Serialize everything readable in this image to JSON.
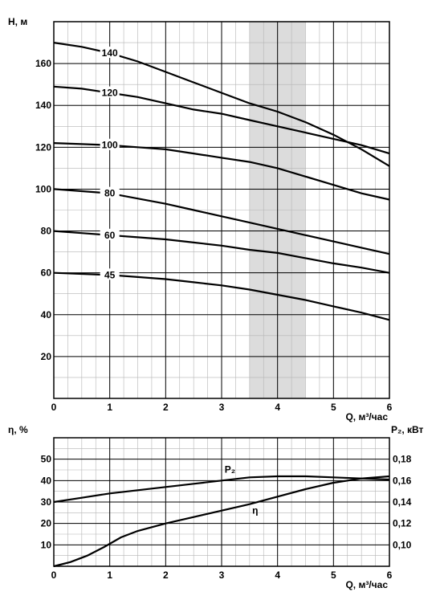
{
  "chart_data": [
    {
      "type": "line",
      "title": "",
      "ylabel": "H, м",
      "xlabel": "Q, м³/час",
      "xlim": [
        0,
        6
      ],
      "ylim": [
        0,
        180
      ],
      "x_ticks": [
        "0",
        "1",
        "2",
        "3",
        "4",
        "5",
        "6"
      ],
      "y_ticks": [
        "20",
        "40",
        "60",
        "80",
        "100",
        "120",
        "140",
        "160"
      ],
      "grid": true,
      "highlight_range": [
        3.5,
        4.5
      ],
      "highlight_color": "#dcdcdc",
      "series": [
        {
          "name": "140",
          "x": [
            0,
            0.5,
            1.0,
            1.5,
            2.0,
            2.5,
            3.0,
            3.5,
            4.0,
            4.5,
            5.0,
            5.5,
            6.0
          ],
          "y": [
            170,
            168,
            165,
            161,
            156,
            151,
            146,
            141,
            137,
            132,
            126,
            119,
            111
          ]
        },
        {
          "name": "120",
          "x": [
            0,
            0.5,
            1.0,
            1.5,
            2.0,
            2.5,
            3.0,
            3.5,
            4.0,
            4.5,
            5.0,
            5.5,
            6.0
          ],
          "y": [
            149,
            148,
            146,
            144,
            141,
            138,
            136,
            133,
            130,
            127,
            124,
            121,
            117
          ]
        },
        {
          "name": "100",
          "x": [
            0,
            0.5,
            1.0,
            1.5,
            2.0,
            2.5,
            3.0,
            3.5,
            4.0,
            4.5,
            5.0,
            5.5,
            6.0
          ],
          "y": [
            122,
            121.5,
            121,
            120,
            119,
            117,
            115,
            113,
            110,
            106,
            102,
            98,
            95
          ]
        },
        {
          "name": "80",
          "x": [
            0,
            0.5,
            1.0,
            1.5,
            2.0,
            2.5,
            3.0,
            3.5,
            4.0,
            4.5,
            5.0,
            5.5,
            6.0
          ],
          "y": [
            100,
            99,
            98,
            95.5,
            93,
            90,
            87,
            84,
            81,
            78,
            75,
            72,
            69
          ]
        },
        {
          "name": "60",
          "x": [
            0,
            0.5,
            1.0,
            1.5,
            2.0,
            2.5,
            3.0,
            3.5,
            4.0,
            4.5,
            5.0,
            5.5,
            6.0
          ],
          "y": [
            80,
            79,
            78,
            77,
            76,
            74.5,
            73,
            71,
            69.5,
            67,
            64.5,
            62.5,
            60
          ]
        },
        {
          "name": "45",
          "x": [
            0,
            0.5,
            1.0,
            1.5,
            2.0,
            2.5,
            3.0,
            3.5,
            4.0,
            4.5,
            5.0,
            5.5,
            6.0
          ],
          "y": [
            60,
            59.5,
            59,
            58,
            57,
            55.5,
            54,
            52,
            49.5,
            47,
            44,
            41,
            37.5
          ]
        }
      ]
    },
    {
      "type": "line",
      "title": "",
      "ylabel": "η, %",
      "ylabel_right": "P₂, кВт",
      "xlabel": "Q, м³/час",
      "xlim": [
        0,
        6
      ],
      "ylim": [
        0,
        60
      ],
      "ylim_right": [
        0.08,
        0.2
      ],
      "x_ticks": [
        "0",
        "1",
        "2",
        "3",
        "4",
        "5",
        "6"
      ],
      "y_ticks": [
        "10",
        "20",
        "30",
        "40",
        "50"
      ],
      "y_ticks_right": [
        "0,10",
        "0,12",
        "0,14",
        "0,16",
        "0,18"
      ],
      "grid": true,
      "series": [
        {
          "name": "P₂",
          "axis": "right",
          "x": [
            0,
            0.5,
            1.0,
            1.5,
            2.0,
            2.5,
            3.0,
            3.5,
            4.0,
            4.5,
            5.0,
            5.5,
            6.0
          ],
          "y": [
            0.14,
            0.144,
            0.148,
            0.151,
            0.154,
            0.157,
            0.16,
            0.163,
            0.164,
            0.164,
            0.163,
            0.162,
            0.161
          ]
        },
        {
          "name": "η",
          "axis": "left",
          "x": [
            0,
            0.3,
            0.6,
            0.9,
            1.2,
            1.5,
            2.0,
            2.5,
            3.0,
            3.5,
            4.0,
            4.5,
            5.0,
            5.5,
            6.0
          ],
          "y": [
            0,
            2,
            5,
            9,
            13.5,
            16.5,
            20,
            23,
            26,
            29,
            32.5,
            36,
            39,
            41,
            42
          ]
        }
      ]
    }
  ]
}
